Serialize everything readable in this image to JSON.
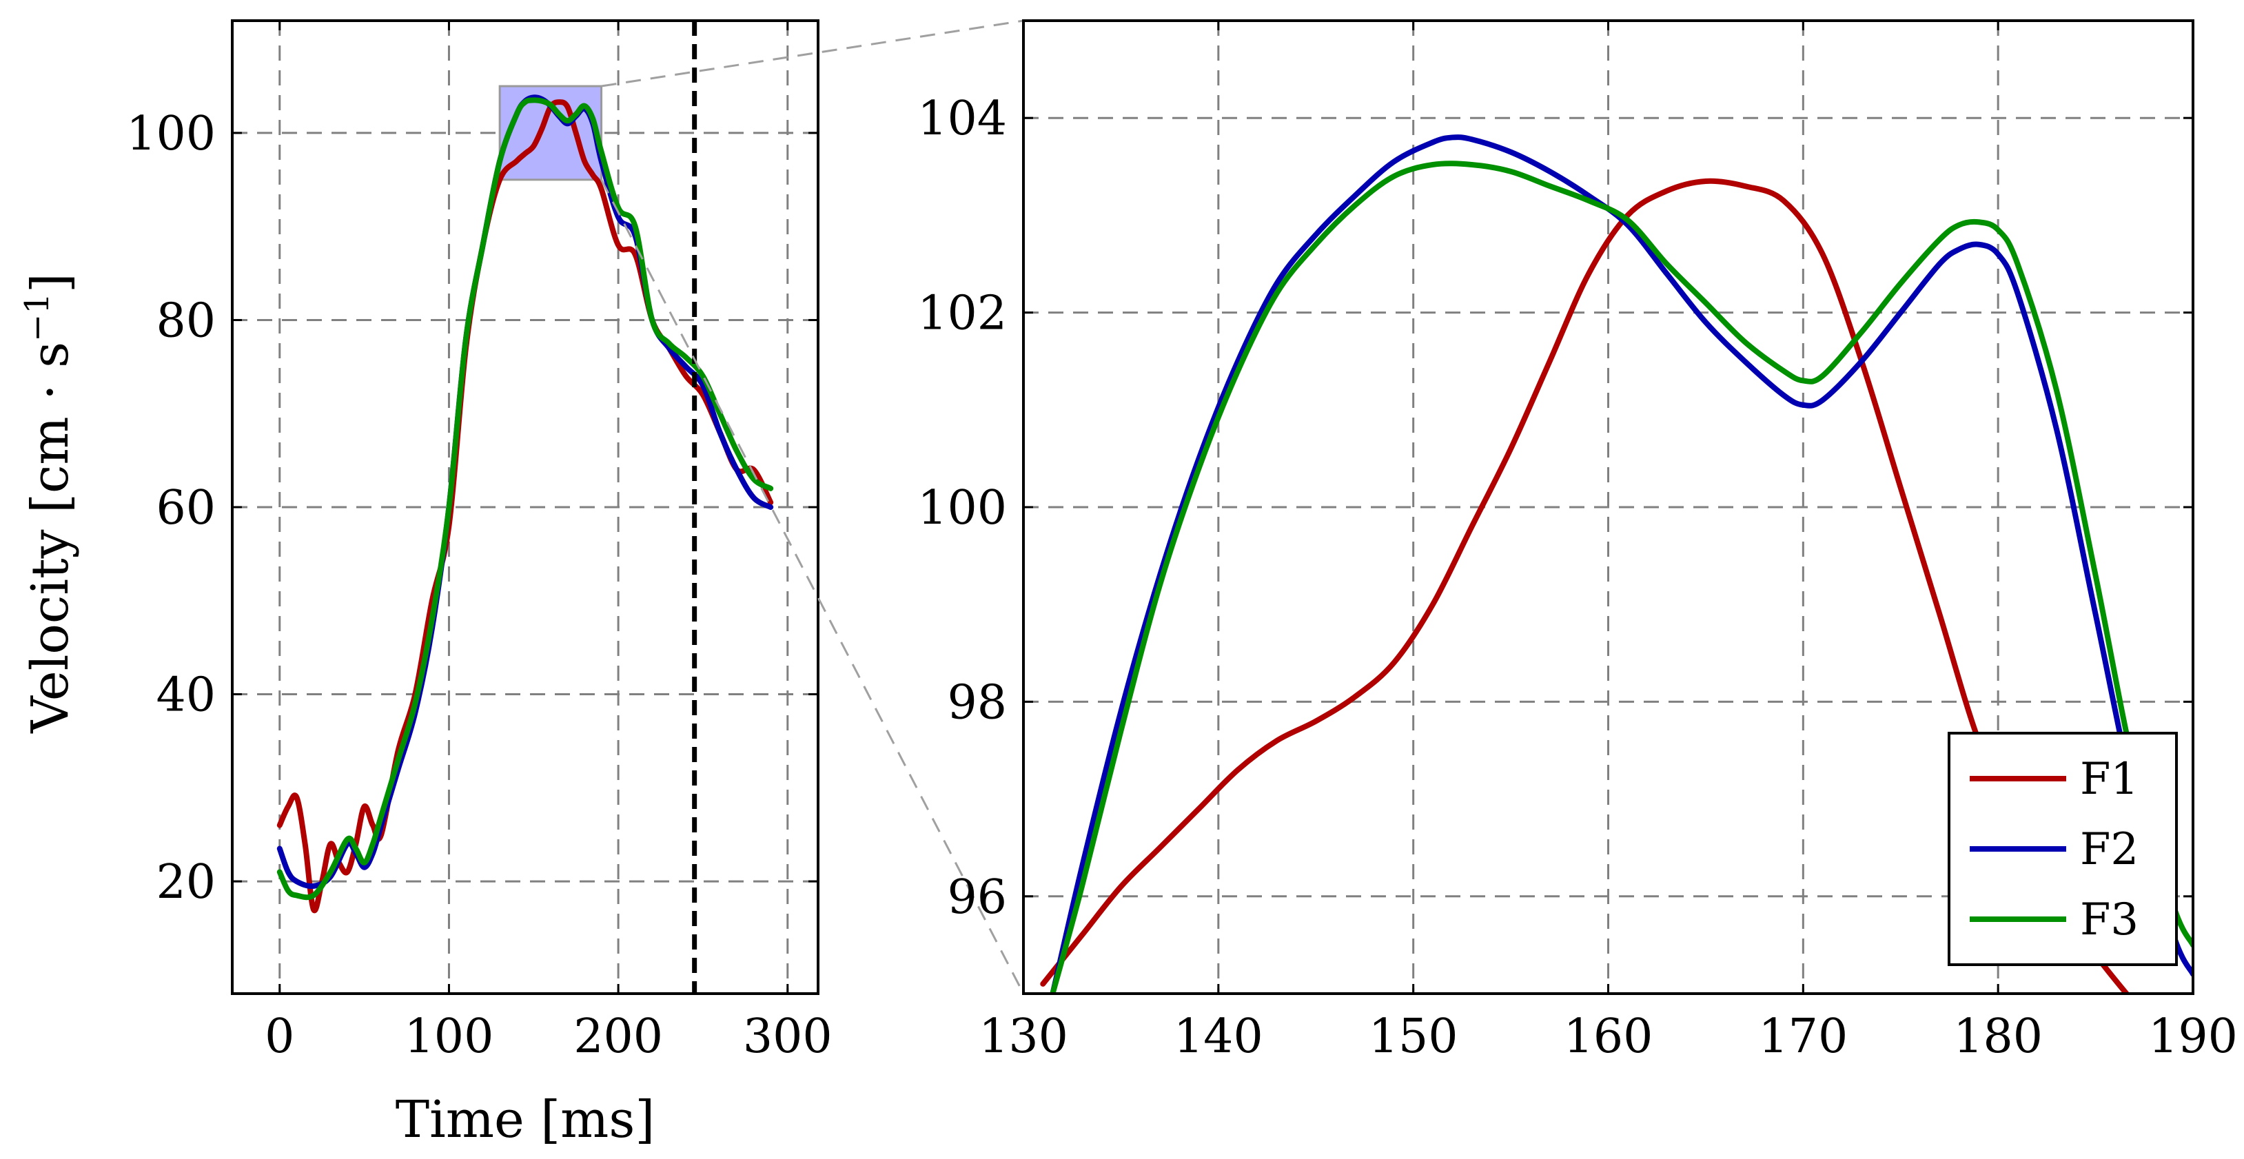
{
  "chart_data": [
    {
      "name": "overview",
      "type": "line",
      "xlabel": "Time [ms]",
      "ylabel": "Velocity [cm · s",
      "ylabel_sup": "−1",
      "ylabel_close": "]",
      "xlim": [
        -28,
        318
      ],
      "ylim": [
        8,
        112
      ],
      "xticks": [
        0,
        100,
        200,
        300
      ],
      "yticks": [
        20,
        40,
        60,
        80,
        100
      ],
      "xtick_labels": [
        "0",
        "100",
        "200",
        "300"
      ],
      "ytick_labels": [
        "20",
        "40",
        "60",
        "80",
        "100"
      ],
      "grid": true,
      "marker_line_x": 245,
      "zoom_box": {
        "x": [
          130,
          190
        ],
        "y": [
          95,
          105
        ]
      },
      "series": [
        {
          "name": "F1",
          "color": "#b00000",
          "x": [
            0,
            5,
            10,
            15,
            20,
            25,
            30,
            35,
            40,
            45,
            50,
            55,
            60,
            70,
            80,
            90,
            100,
            110,
            120,
            130,
            140,
            145,
            150,
            155,
            160,
            165,
            170,
            175,
            180,
            185,
            190,
            200,
            210,
            220,
            230,
            240,
            250,
            260,
            270,
            280,
            290
          ],
          "y": [
            26,
            28,
            29,
            24,
            17,
            20,
            24,
            22,
            21,
            24,
            28,
            26,
            25,
            34,
            40,
            50,
            58,
            77,
            88,
            95,
            97,
            97.8,
            98.6,
            100.5,
            102.8,
            103.3,
            102.8,
            100,
            97,
            95.5,
            94,
            88,
            87,
            80,
            77,
            74,
            72,
            68,
            64,
            64,
            60.5
          ]
        },
        {
          "name": "F2",
          "color": "#0000b0",
          "x": [
            0,
            5,
            10,
            20,
            30,
            40,
            45,
            50,
            55,
            60,
            70,
            80,
            90,
            100,
            110,
            120,
            130,
            140,
            145,
            150,
            155,
            160,
            165,
            170,
            175,
            180,
            185,
            190,
            200,
            210,
            220,
            230,
            240,
            250,
            260,
            270,
            280,
            290
          ],
          "y": [
            23.5,
            21,
            20,
            19.5,
            20.5,
            24,
            23,
            21.5,
            23,
            26,
            32,
            38,
            47,
            60,
            78,
            88,
            97,
            102,
            103.4,
            103.8,
            103.6,
            102.9,
            101.8,
            101,
            101.8,
            102.6,
            101,
            97,
            91,
            89,
            80,
            77,
            75,
            73,
            68,
            64,
            61,
            60
          ]
        },
        {
          "name": "F3",
          "color": "#009000",
          "x": [
            0,
            5,
            10,
            20,
            30,
            40,
            45,
            50,
            55,
            60,
            70,
            80,
            90,
            100,
            110,
            120,
            130,
            140,
            145,
            150,
            155,
            160,
            165,
            170,
            175,
            180,
            185,
            190,
            200,
            210,
            220,
            230,
            240,
            250,
            260,
            270,
            280,
            290
          ],
          "y": [
            21,
            19,
            18.5,
            18.5,
            21,
            24.5,
            23.5,
            22,
            24,
            27,
            33,
            39,
            48,
            60,
            78,
            88,
            97,
            102,
            103.3,
            103.5,
            103.4,
            103,
            102,
            101.3,
            102,
            102.9,
            101.5,
            98,
            92,
            90,
            80,
            77.5,
            76,
            74,
            70,
            66,
            63,
            62
          ]
        }
      ]
    },
    {
      "name": "zoom",
      "type": "line",
      "xlabel": "",
      "ylabel": "",
      "xlim": [
        130,
        190
      ],
      "ylim": [
        95,
        105
      ],
      "xticks": [
        130,
        140,
        150,
        160,
        170,
        180,
        190
      ],
      "yticks": [
        96,
        98,
        100,
        102,
        104
      ],
      "xtick_labels": [
        "130",
        "140",
        "150",
        "160",
        "170",
        "180",
        "190"
      ],
      "ytick_labels": [
        "96",
        "98",
        "100",
        "102",
        "104"
      ],
      "grid": true,
      "legend": {
        "position": "bottom-right",
        "entries": [
          "F1",
          "F2",
          "F3"
        ]
      },
      "series": [
        {
          "name": "F1",
          "color": "#b00000",
          "x": [
            131,
            133,
            135,
            137,
            139,
            141,
            143,
            145,
            147,
            149,
            151,
            153,
            155,
            157,
            159,
            161,
            163,
            165,
            167,
            169,
            171,
            173,
            175,
            177,
            179,
            181,
            183,
            185,
            187
          ],
          "y": [
            95.1,
            95.6,
            96.1,
            96.5,
            96.9,
            97.3,
            97.6,
            97.8,
            98.05,
            98.4,
            99.0,
            99.8,
            100.6,
            101.5,
            102.4,
            103.0,
            103.25,
            103.35,
            103.3,
            103.15,
            102.6,
            101.5,
            100.2,
            98.9,
            97.6,
            96.7,
            96.0,
            95.4,
            94.9
          ]
        },
        {
          "name": "F2",
          "color": "#0000b0",
          "x": [
            131.5,
            133,
            135,
            137,
            139,
            141,
            143,
            145,
            147,
            149,
            151,
            152,
            153,
            155,
            157,
            159,
            161,
            163,
            165,
            167,
            169,
            170,
            171,
            173,
            175,
            177,
            178,
            179,
            180,
            181,
            183,
            185,
            187,
            189,
            190
          ],
          "y": [
            95.0,
            96.3,
            97.9,
            99.3,
            100.5,
            101.5,
            102.3,
            102.8,
            103.2,
            103.55,
            103.75,
            103.8,
            103.78,
            103.65,
            103.45,
            103.2,
            102.9,
            102.4,
            101.9,
            101.5,
            101.15,
            101.05,
            101.1,
            101.5,
            102.0,
            102.5,
            102.65,
            102.7,
            102.6,
            102.2,
            100.8,
            98.9,
            97.0,
            95.6,
            95.2
          ]
        },
        {
          "name": "F3",
          "color": "#009000",
          "x": [
            131.5,
            133,
            135,
            137,
            139,
            141,
            143,
            145,
            147,
            149,
            151,
            153,
            155,
            157,
            159,
            161,
            163,
            165,
            167,
            169,
            170,
            171,
            173,
            175,
            177,
            178,
            179,
            180,
            181,
            183,
            185,
            187,
            189,
            190
          ],
          "y": [
            95.0,
            96.1,
            97.7,
            99.2,
            100.4,
            101.4,
            102.2,
            102.7,
            103.1,
            103.4,
            103.52,
            103.52,
            103.45,
            103.3,
            103.15,
            102.95,
            102.5,
            102.1,
            101.7,
            101.4,
            101.3,
            101.35,
            101.8,
            102.3,
            102.75,
            102.9,
            102.93,
            102.85,
            102.5,
            101.2,
            99.3,
            97.3,
            95.9,
            95.5
          ]
        }
      ]
    }
  ]
}
